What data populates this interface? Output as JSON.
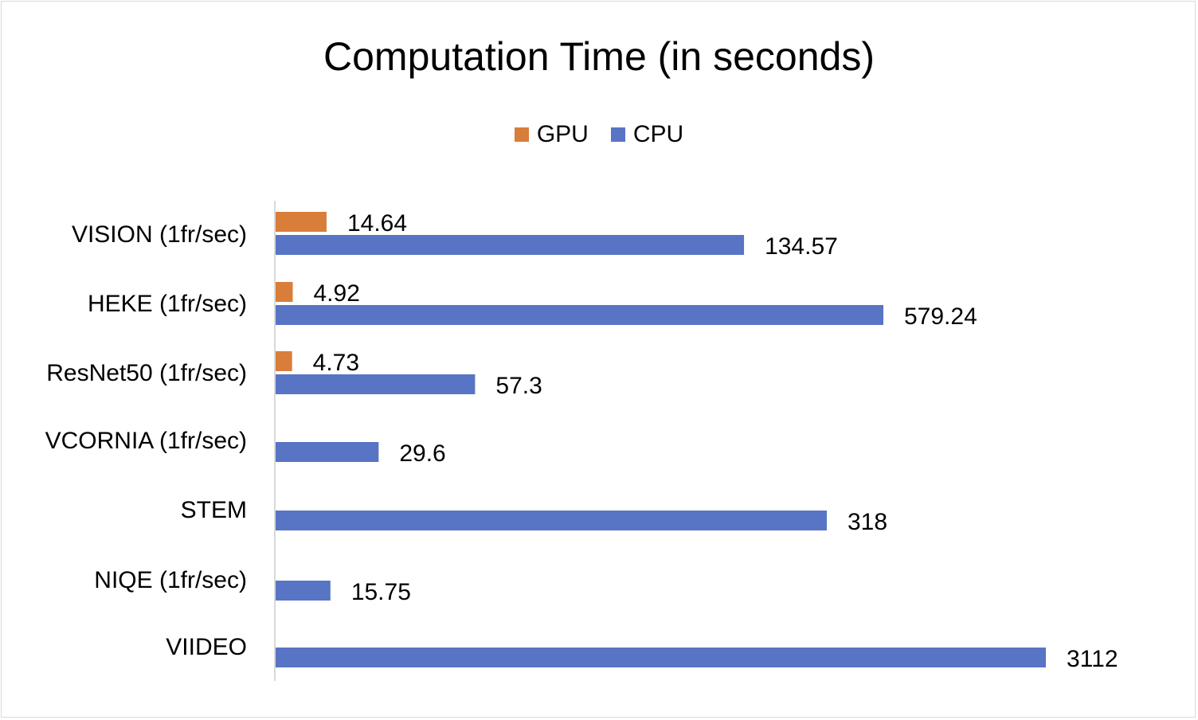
{
  "chart_data": {
    "type": "bar",
    "orientation": "horizontal",
    "title": "Computation Time (in seconds)",
    "categories": [
      "VISION (1fr/sec)",
      "HEKE (1fr/sec)",
      "ResNet50 (1fr/sec)",
      "VCORNIA (1fr/sec)",
      "STEM",
      "NIQE (1fr/sec)",
      "VIIDEO"
    ],
    "series": [
      {
        "name": "GPU",
        "color": "#d97d3a",
        "values": [
          14.64,
          4.92,
          4.73,
          null,
          null,
          null,
          null
        ],
        "labels": [
          "14.64",
          "4.92",
          "4.73",
          "",
          "",
          "",
          ""
        ]
      },
      {
        "name": "CPU",
        "color": "#5874c4",
        "values": [
          134.57,
          579.24,
          57.3,
          29.6,
          318,
          15.75,
          3112
        ],
        "labels": [
          "134.57",
          "579.24",
          "57.3",
          "29.6",
          "318",
          "15.75",
          "3112"
        ]
      }
    ],
    "legend_position": "top",
    "grid": false
  }
}
